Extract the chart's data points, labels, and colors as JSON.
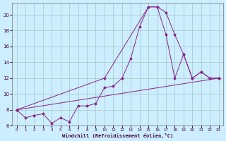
{
  "xlabel": "Windchill (Refroidissement éolien,°C)",
  "background_color": "#cceeff",
  "grid_color": "#aacccc",
  "line_color": "#882288",
  "xlim": [
    -0.5,
    23.5
  ],
  "ylim": [
    6,
    21.5
  ],
  "yticks": [
    6,
    8,
    10,
    12,
    14,
    16,
    18,
    20
  ],
  "xticks": [
    0,
    1,
    2,
    3,
    4,
    5,
    6,
    7,
    8,
    9,
    10,
    11,
    12,
    13,
    14,
    15,
    16,
    17,
    18,
    19,
    20,
    21,
    22,
    23
  ],
  "line1_x": [
    0,
    1,
    2,
    3,
    4,
    5,
    6,
    7,
    8,
    9,
    10,
    11,
    12,
    13,
    14,
    15,
    16,
    17,
    18,
    19,
    20,
    21,
    22,
    23
  ],
  "line1_y": [
    8.0,
    7.0,
    7.3,
    7.5,
    6.3,
    7.0,
    6.5,
    8.5,
    8.5,
    8.8,
    10.8,
    11.0,
    12.0,
    14.5,
    18.5,
    21.0,
    21.0,
    20.3,
    17.5,
    15.0,
    12.0,
    12.8,
    12.0,
    12.0
  ],
  "line2_x": [
    0,
    10,
    15,
    16,
    17,
    18,
    19,
    20,
    21,
    22,
    23
  ],
  "line2_y": [
    8.0,
    12.0,
    21.0,
    21.0,
    17.5,
    12.0,
    15.0,
    12.0,
    12.8,
    12.0,
    12.0
  ],
  "line3_x": [
    0,
    23
  ],
  "line3_y": [
    8.0,
    12.0
  ]
}
